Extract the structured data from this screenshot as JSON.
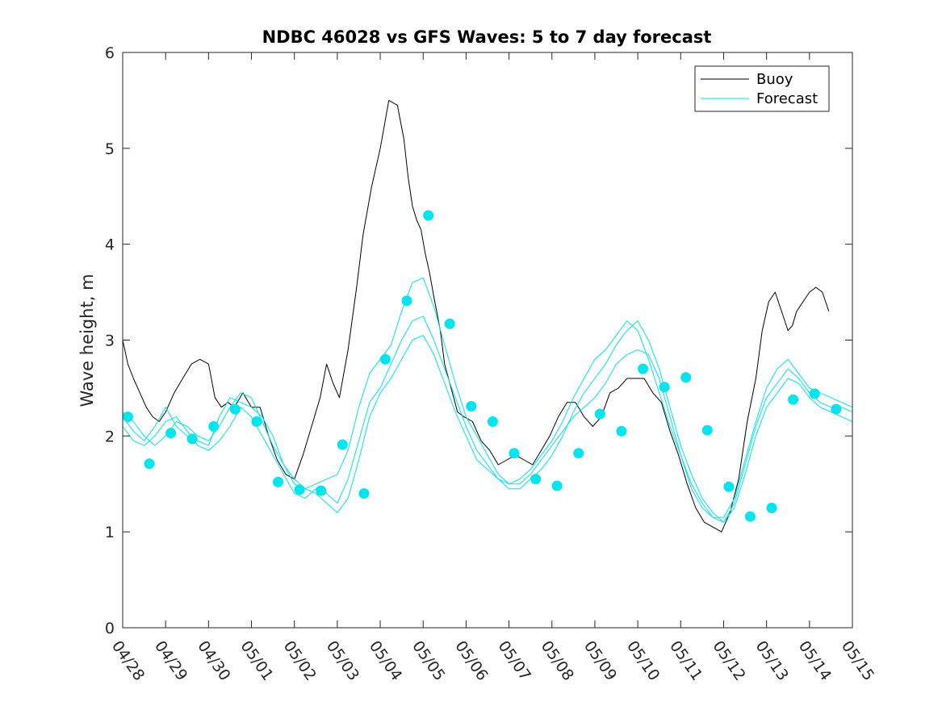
{
  "chart_data": {
    "type": "line",
    "title": "NDBC 46028 vs GFS Waves: 5 to 7 day forecast",
    "ylabel": "Wave height, m",
    "xlabel": "",
    "xlim": [
      0,
      17
    ],
    "ylim": [
      0,
      6
    ],
    "yticks": [
      0,
      1,
      2,
      3,
      4,
      5,
      6
    ],
    "xtick_labels": [
      "04/28",
      "04/29",
      "04/30",
      "05/01",
      "05/02",
      "05/03",
      "05/04",
      "05/05",
      "05/06",
      "05/07",
      "05/08",
      "05/09",
      "05/10",
      "05/11",
      "05/12",
      "05/13",
      "05/14",
      "05/15"
    ],
    "x_units_note": "days since 04/28 00:00",
    "legend": {
      "position": "top-right",
      "entries": [
        "Buoy",
        "Forecast"
      ]
    },
    "colors": {
      "buoy": "#000000",
      "forecast": "#00e5ee",
      "markers": "#00e5ee",
      "axes": "#262626"
    },
    "series": [
      {
        "name": "Buoy",
        "x": [
          0,
          0.12,
          0.25,
          0.4,
          0.55,
          0.7,
          0.85,
          1.0,
          1.2,
          1.4,
          1.6,
          1.8,
          2.0,
          2.15,
          2.3,
          2.45,
          2.6,
          2.8,
          3.0,
          3.2,
          3.4,
          3.6,
          3.8,
          4.0,
          4.2,
          4.4,
          4.6,
          4.75,
          4.9,
          5.05,
          5.25,
          5.45,
          5.6,
          5.8,
          6.0,
          6.2,
          6.4,
          6.55,
          6.65,
          6.75,
          6.85,
          6.95,
          7.05,
          7.15,
          7.25,
          7.4,
          7.5,
          7.65,
          7.8,
          7.95,
          8.15,
          8.35,
          8.55,
          8.75,
          8.95,
          9.15,
          9.35,
          9.55,
          9.75,
          9.95,
          10.15,
          10.35,
          10.55,
          10.75,
          10.95,
          11.15,
          11.35,
          11.55,
          11.75,
          11.95,
          12.15,
          12.35,
          12.55,
          12.75,
          12.95,
          13.15,
          13.35,
          13.55,
          13.75,
          13.95,
          14.15,
          14.35,
          14.55,
          14.75,
          14.9,
          15.05,
          15.2,
          15.35,
          15.5,
          15.6,
          15.7,
          15.85,
          16.0,
          16.15,
          16.3,
          16.45
        ],
        "y": [
          3.0,
          2.75,
          2.6,
          2.45,
          2.3,
          2.2,
          2.15,
          2.25,
          2.45,
          2.6,
          2.75,
          2.8,
          2.75,
          2.4,
          2.3,
          2.35,
          2.3,
          2.45,
          2.3,
          2.3,
          2.0,
          1.75,
          1.6,
          1.55,
          1.8,
          2.1,
          2.4,
          2.75,
          2.55,
          2.4,
          2.9,
          3.55,
          4.1,
          4.6,
          5.0,
          5.5,
          5.45,
          5.1,
          4.7,
          4.4,
          4.25,
          4.15,
          3.9,
          3.7,
          3.45,
          3.1,
          2.75,
          2.5,
          2.25,
          2.2,
          2.15,
          1.95,
          1.85,
          1.7,
          1.75,
          1.8,
          1.75,
          1.7,
          1.85,
          2.0,
          2.2,
          2.35,
          2.35,
          2.2,
          2.1,
          2.2,
          2.45,
          2.5,
          2.6,
          2.6,
          2.6,
          2.45,
          2.35,
          2.05,
          1.8,
          1.5,
          1.25,
          1.1,
          1.05,
          1.0,
          1.2,
          1.55,
          2.15,
          2.6,
          3.1,
          3.4,
          3.5,
          3.3,
          3.1,
          3.15,
          3.3,
          3.4,
          3.5,
          3.55,
          3.5,
          3.3
        ]
      },
      {
        "name": "Forecast",
        "x": [
          0,
          0.25,
          0.5,
          0.75,
          1.0,
          1.25,
          1.5,
          1.75,
          2.0,
          2.25,
          2.5,
          2.75,
          3.0,
          3.25,
          3.5,
          3.75,
          4.0,
          4.25,
          4.5,
          4.75,
          5.0,
          5.25,
          5.5,
          5.75,
          6.0,
          6.25,
          6.5,
          6.75,
          7.0,
          7.25,
          7.5,
          7.75,
          8.0,
          8.25,
          8.5,
          8.75,
          9.0,
          9.25,
          9.5,
          9.75,
          10.0,
          10.25,
          10.5,
          10.75,
          11.0,
          11.25,
          11.5,
          11.75,
          12.0,
          12.25,
          12.5,
          12.75,
          13.0,
          13.25,
          13.5,
          13.75,
          14.0,
          14.25,
          14.5,
          14.75,
          15.0,
          15.25,
          15.5,
          15.75,
          16.0,
          16.25,
          16.5,
          16.75,
          17.0
        ],
        "y": [
          2.2,
          2.05,
          1.95,
          2.1,
          2.3,
          2.1,
          2.0,
          1.95,
          1.9,
          2.2,
          2.4,
          2.35,
          2.3,
          2.2,
          2.0,
          1.7,
          1.5,
          1.45,
          1.5,
          1.55,
          1.6,
          1.85,
          2.3,
          2.65,
          2.8,
          2.95,
          3.3,
          3.6,
          3.65,
          3.35,
          2.95,
          2.55,
          2.2,
          2.0,
          1.8,
          1.6,
          1.5,
          1.5,
          1.6,
          1.75,
          1.9,
          2.05,
          2.2,
          2.3,
          2.4,
          2.55,
          2.75,
          2.85,
          2.9,
          2.85,
          2.6,
          2.2,
          1.8,
          1.45,
          1.25,
          1.15,
          1.15,
          1.35,
          1.75,
          2.15,
          2.5,
          2.7,
          2.8,
          2.65,
          2.5,
          2.45,
          2.4,
          2.35,
          2.3
        ]
      },
      {
        "name": "Forecast",
        "x": [
          0,
          0.25,
          0.5,
          0.75,
          1.0,
          1.25,
          1.5,
          1.75,
          2.0,
          2.25,
          2.5,
          2.75,
          3.0,
          3.25,
          3.5,
          3.75,
          4.0,
          4.25,
          4.5,
          4.75,
          5.0,
          5.25,
          5.5,
          5.75,
          6.0,
          6.25,
          6.5,
          6.75,
          7.0,
          7.25,
          7.5,
          7.75,
          8.0,
          8.25,
          8.5,
          8.75,
          9.0,
          9.25,
          9.5,
          9.75,
          10.0,
          10.25,
          10.5,
          10.75,
          11.0,
          11.25,
          11.5,
          11.75,
          12.0,
          12.25,
          12.5,
          12.75,
          13.0,
          13.25,
          13.5,
          13.75,
          14.0,
          14.25,
          14.5,
          14.75,
          15.0,
          15.25,
          15.5,
          15.75,
          16.0,
          16.25,
          16.5,
          16.75,
          17.0
        ],
        "y": [
          2.1,
          1.95,
          1.9,
          2.0,
          2.15,
          2.2,
          2.05,
          1.9,
          1.85,
          1.95,
          2.1,
          2.3,
          2.2,
          2.0,
          1.8,
          1.6,
          1.4,
          1.35,
          1.45,
          1.4,
          1.3,
          1.55,
          1.95,
          2.35,
          2.5,
          2.75,
          3.0,
          3.2,
          3.25,
          3.0,
          2.7,
          2.4,
          2.1,
          1.85,
          1.7,
          1.55,
          1.45,
          1.45,
          1.55,
          1.65,
          1.8,
          2.0,
          2.25,
          2.45,
          2.6,
          2.75,
          2.95,
          3.1,
          3.2,
          3.0,
          2.7,
          2.3,
          1.9,
          1.6,
          1.35,
          1.2,
          1.1,
          1.25,
          1.6,
          2.0,
          2.3,
          2.45,
          2.6,
          2.55,
          2.4,
          2.3,
          2.25,
          2.2,
          2.15
        ]
      },
      {
        "name": "Forecast",
        "x": [
          0,
          0.25,
          0.5,
          0.75,
          1.0,
          1.25,
          1.5,
          1.75,
          2.0,
          2.25,
          2.5,
          2.75,
          3.0,
          3.25,
          3.5,
          3.75,
          4.0,
          4.25,
          4.5,
          4.75,
          5.0,
          5.25,
          5.5,
          5.75,
          6.0,
          6.25,
          6.5,
          6.75,
          7.0,
          7.25,
          7.5,
          7.75,
          8.0,
          8.25,
          8.5,
          8.75,
          9.0,
          9.25,
          9.5,
          9.75,
          10.0,
          10.25,
          10.5,
          10.75,
          11.0,
          11.25,
          11.5,
          11.75,
          12.0,
          12.25,
          12.5,
          12.75,
          13.0,
          13.25,
          13.5,
          13.75,
          14.0,
          14.25,
          14.5,
          14.75,
          15.0,
          15.25,
          15.5,
          15.75,
          16.0,
          16.25,
          16.5,
          16.75,
          17.0
        ],
        "y": [
          2.25,
          2.15,
          2.0,
          1.9,
          2.0,
          2.15,
          2.1,
          2.0,
          1.95,
          2.1,
          2.3,
          2.45,
          2.4,
          2.15,
          1.9,
          1.7,
          1.55,
          1.45,
          1.4,
          1.3,
          1.2,
          1.35,
          1.75,
          2.2,
          2.45,
          2.6,
          2.8,
          3.0,
          3.05,
          2.85,
          2.55,
          2.25,
          2.0,
          1.75,
          1.65,
          1.55,
          1.5,
          1.55,
          1.65,
          1.8,
          1.95,
          2.15,
          2.4,
          2.6,
          2.8,
          2.9,
          3.05,
          3.2,
          3.1,
          2.8,
          2.45,
          2.1,
          1.8,
          1.5,
          1.3,
          1.15,
          1.1,
          1.3,
          1.7,
          2.1,
          2.4,
          2.55,
          2.7,
          2.6,
          2.45,
          2.35,
          2.3,
          2.3,
          2.25
        ]
      }
    ],
    "markers": {
      "name": "Forecast points",
      "x": [
        0.12,
        0.62,
        1.12,
        1.62,
        2.12,
        2.62,
        3.12,
        3.62,
        4.12,
        4.62,
        5.12,
        5.62,
        6.12,
        6.62,
        7.12,
        7.62,
        8.12,
        8.62,
        9.12,
        9.62,
        10.12,
        10.62,
        11.12,
        11.62,
        12.12,
        12.62,
        13.12,
        13.62,
        14.12,
        14.62,
        15.12,
        15.62,
        16.12,
        16.62
      ],
      "y": [
        2.2,
        1.71,
        2.03,
        1.97,
        2.1,
        2.28,
        2.15,
        1.52,
        1.44,
        1.43,
        1.91,
        1.4,
        2.8,
        3.41,
        4.3,
        3.17,
        2.31,
        2.15,
        1.82,
        1.55,
        1.48,
        1.82,
        2.23,
        2.05,
        2.7,
        2.51,
        2.61,
        2.06,
        1.47,
        1.16,
        1.25,
        2.38,
        2.44,
        2.28
      ]
    }
  }
}
